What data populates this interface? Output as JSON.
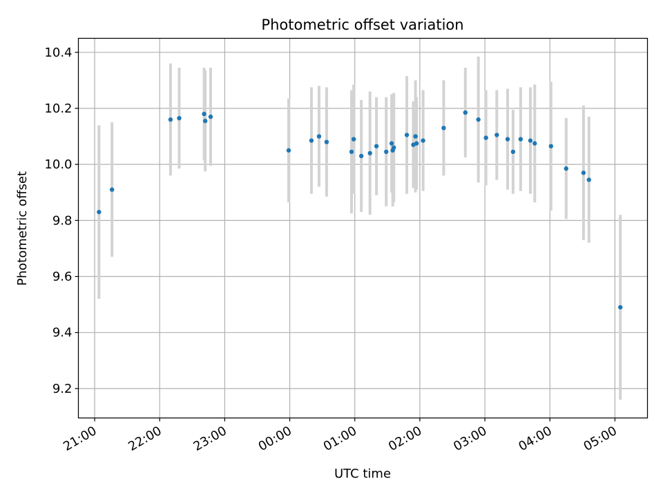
{
  "chart_data": {
    "type": "scatter",
    "title": "Photometric offset variation",
    "xlabel": "UTC time",
    "ylabel": "Photometric offset",
    "x_unit": "UTC time of night (21:00 to 05:00)",
    "xlim": [
      "20:45",
      "05:30"
    ],
    "ylim": [
      9.095,
      10.45
    ],
    "grid": true,
    "x_ticks": [
      {
        "time": "21:00",
        "label": "21:00"
      },
      {
        "time": "22:00",
        "label": "22:00"
      },
      {
        "time": "23:00",
        "label": "23:00"
      },
      {
        "time": "00:00",
        "label": "00:00"
      },
      {
        "time": "01:00",
        "label": "01:00"
      },
      {
        "time": "02:00",
        "label": "02:00"
      },
      {
        "time": "03:00",
        "label": "03:00"
      },
      {
        "time": "04:00",
        "label": "04:00"
      },
      {
        "time": "05:00",
        "label": "05:00"
      }
    ],
    "y_ticks": [
      {
        "value": 9.2,
        "label": "9.2"
      },
      {
        "value": 9.4,
        "label": "9.4"
      },
      {
        "value": 9.6,
        "label": "9.6"
      },
      {
        "value": 9.8,
        "label": "9.8"
      },
      {
        "value": 10.0,
        "label": "10.0"
      },
      {
        "value": 10.2,
        "label": "10.2"
      },
      {
        "value": 10.4,
        "label": "10.4"
      }
    ],
    "colors": {
      "point": "#1f77b4",
      "errorbar": "#d3d3d3",
      "grid": "#b0b0b0"
    },
    "points": [
      {
        "x": "21:04",
        "y": 9.83,
        "yerr": 0.31
      },
      {
        "x": "21:16",
        "y": 9.91,
        "yerr": 0.24
      },
      {
        "x": "22:10",
        "y": 10.16,
        "yerr": 0.2
      },
      {
        "x": "22:18",
        "y": 10.165,
        "yerr": 0.18
      },
      {
        "x": "22:41",
        "y": 10.18,
        "yerr": 0.165
      },
      {
        "x": "22:42",
        "y": 10.155,
        "yerr": 0.18
      },
      {
        "x": "22:47",
        "y": 10.17,
        "yerr": 0.175
      },
      {
        "x": "23:59",
        "y": 10.05,
        "yerr": 0.185
      },
      {
        "x": "00:20",
        "y": 10.085,
        "yerr": 0.19
      },
      {
        "x": "00:27",
        "y": 10.1,
        "yerr": 0.18
      },
      {
        "x": "00:34",
        "y": 10.08,
        "yerr": 0.195
      },
      {
        "x": "00:57",
        "y": 10.045,
        "yerr": 0.22
      },
      {
        "x": "00:59",
        "y": 10.09,
        "yerr": 0.195
      },
      {
        "x": "01:06",
        "y": 10.03,
        "yerr": 0.2
      },
      {
        "x": "01:14",
        "y": 10.04,
        "yerr": 0.22
      },
      {
        "x": "01:20",
        "y": 10.065,
        "yerr": 0.175
      },
      {
        "x": "01:29",
        "y": 10.045,
        "yerr": 0.195
      },
      {
        "x": "01:34",
        "y": 10.075,
        "yerr": 0.175
      },
      {
        "x": "01:35",
        "y": 10.05,
        "yerr": 0.2
      },
      {
        "x": "01:36",
        "y": 10.06,
        "yerr": 0.195
      },
      {
        "x": "01:48",
        "y": 10.105,
        "yerr": 0.21
      },
      {
        "x": "01:54",
        "y": 10.07,
        "yerr": 0.155
      },
      {
        "x": "01:56",
        "y": 10.1,
        "yerr": 0.2
      },
      {
        "x": "01:57",
        "y": 10.075,
        "yerr": 0.165
      },
      {
        "x": "02:03",
        "y": 10.085,
        "yerr": 0.18
      },
      {
        "x": "02:22",
        "y": 10.13,
        "yerr": 0.17
      },
      {
        "x": "02:42",
        "y": 10.185,
        "yerr": 0.16
      },
      {
        "x": "02:54",
        "y": 10.16,
        "yerr": 0.225
      },
      {
        "x": "03:01",
        "y": 10.095,
        "yerr": 0.17
      },
      {
        "x": "03:11",
        "y": 10.105,
        "yerr": 0.16
      },
      {
        "x": "03:21",
        "y": 10.09,
        "yerr": 0.18
      },
      {
        "x": "03:26",
        "y": 10.045,
        "yerr": 0.15
      },
      {
        "x": "03:33",
        "y": 10.09,
        "yerr": 0.185
      },
      {
        "x": "03:42",
        "y": 10.085,
        "yerr": 0.19
      },
      {
        "x": "03:46",
        "y": 10.075,
        "yerr": 0.21
      },
      {
        "x": "04:01",
        "y": 10.065,
        "yerr": 0.23
      },
      {
        "x": "04:15",
        "y": 9.985,
        "yerr": 0.18
      },
      {
        "x": "04:31",
        "y": 9.97,
        "yerr": 0.24
      },
      {
        "x": "04:36",
        "y": 9.945,
        "yerr": 0.225
      },
      {
        "x": "05:05",
        "y": 9.49,
        "yerr": 0.33
      }
    ]
  }
}
